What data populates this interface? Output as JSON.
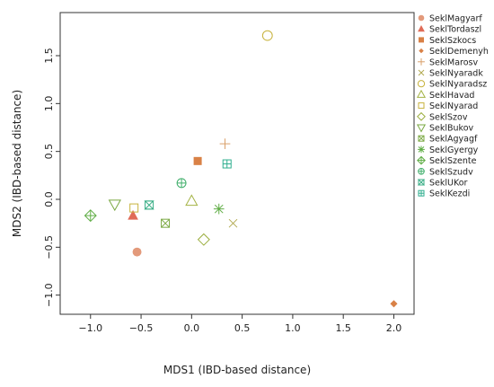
{
  "chart_data": {
    "type": "scatter",
    "xlabel": "MDS1 (IBD-based distance)",
    "ylabel": "MDS2 (IBD-based distance)",
    "xlim": [
      -1.3,
      2.2
    ],
    "ylim": [
      -1.2,
      1.95
    ],
    "xticks": [
      "−1.0",
      "−0.5",
      "0.0",
      "0.5",
      "1.0",
      "1.5",
      "2.0"
    ],
    "xtick_values": [
      -1.0,
      -0.5,
      0.0,
      0.5,
      1.0,
      1.5,
      2.0
    ],
    "yticks": [
      "−1.0",
      "−0.5",
      "0.0",
      "0.5",
      "1.0",
      "1.5"
    ],
    "ytick_values": [
      -1.0,
      -0.5,
      0.0,
      0.5,
      1.0,
      1.5
    ],
    "grid": false,
    "legend_position": "right",
    "series": [
      {
        "name": "SeklMagyarf",
        "x": -0.54,
        "y": -0.55,
        "marker": "dot",
        "color": "#e39a7b"
      },
      {
        "name": "SeklTordaszl",
        "x": -0.58,
        "y": -0.17,
        "marker": "triangle-filled",
        "color": "#e06b57"
      },
      {
        "name": "SeklSzkocs",
        "x": 0.06,
        "y": 0.4,
        "marker": "square-filled",
        "color": "#d98146"
      },
      {
        "name": "SeklDemenyh",
        "x": 2.0,
        "y": -1.09,
        "marker": "diamond-small",
        "color": "#d98146"
      },
      {
        "name": "SeklMarosv",
        "x": 0.33,
        "y": 0.58,
        "marker": "plus",
        "color": "#d9a06a"
      },
      {
        "name": "SeklNyaradk",
        "x": 0.41,
        "y": -0.25,
        "marker": "x",
        "color": "#b3aa52"
      },
      {
        "name": "SeklNyaradsz",
        "x": 0.75,
        "y": 1.71,
        "marker": "circle-open",
        "color": "#c7b23c"
      },
      {
        "name": "SeklHavad",
        "x": 0.0,
        "y": -0.02,
        "marker": "triangle-open",
        "color": "#a4b344"
      },
      {
        "name": "SeklNyarad",
        "x": -0.57,
        "y": -0.09,
        "marker": "square-open",
        "color": "#c7b23c"
      },
      {
        "name": "SeklSzov",
        "x": 0.12,
        "y": -0.42,
        "marker": "diamond-open",
        "color": "#9aad3c"
      },
      {
        "name": "SeklBukov",
        "x": -0.76,
        "y": -0.05,
        "marker": "triangle-down-open",
        "color": "#7aa842"
      },
      {
        "name": "SeklAgyagf",
        "x": -0.26,
        "y": -0.25,
        "marker": "square-x",
        "color": "#7aa842"
      },
      {
        "name": "SeklGyergy",
        "x": 0.27,
        "y": -0.1,
        "marker": "asterisk",
        "color": "#5fad45"
      },
      {
        "name": "SeklSzente",
        "x": -1.0,
        "y": -0.17,
        "marker": "diamond-plus",
        "color": "#5fad45"
      },
      {
        "name": "SeklSzudv",
        "x": -0.1,
        "y": 0.17,
        "marker": "circle-plus",
        "color": "#3fae6a"
      },
      {
        "name": "SeklUKor",
        "x": -0.42,
        "y": -0.06,
        "marker": "square-hourglass",
        "color": "#3aae86"
      },
      {
        "name": "SeklKezdi",
        "x": 0.35,
        "y": 0.37,
        "marker": "square-plus",
        "color": "#2eae8e"
      }
    ]
  }
}
